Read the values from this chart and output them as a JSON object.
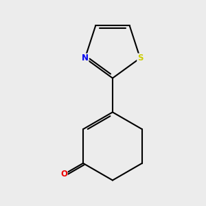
{
  "background_color": "#ececec",
  "bond_color": "#000000",
  "atom_colors": {
    "N": "#0000ee",
    "S": "#cccc00",
    "O": "#ee0000"
  },
  "atom_fontsizes": {
    "N": 8.5,
    "S": 8.5,
    "O": 8.5
  },
  "figsize": [
    3.0,
    3.0
  ],
  "dpi": 100
}
